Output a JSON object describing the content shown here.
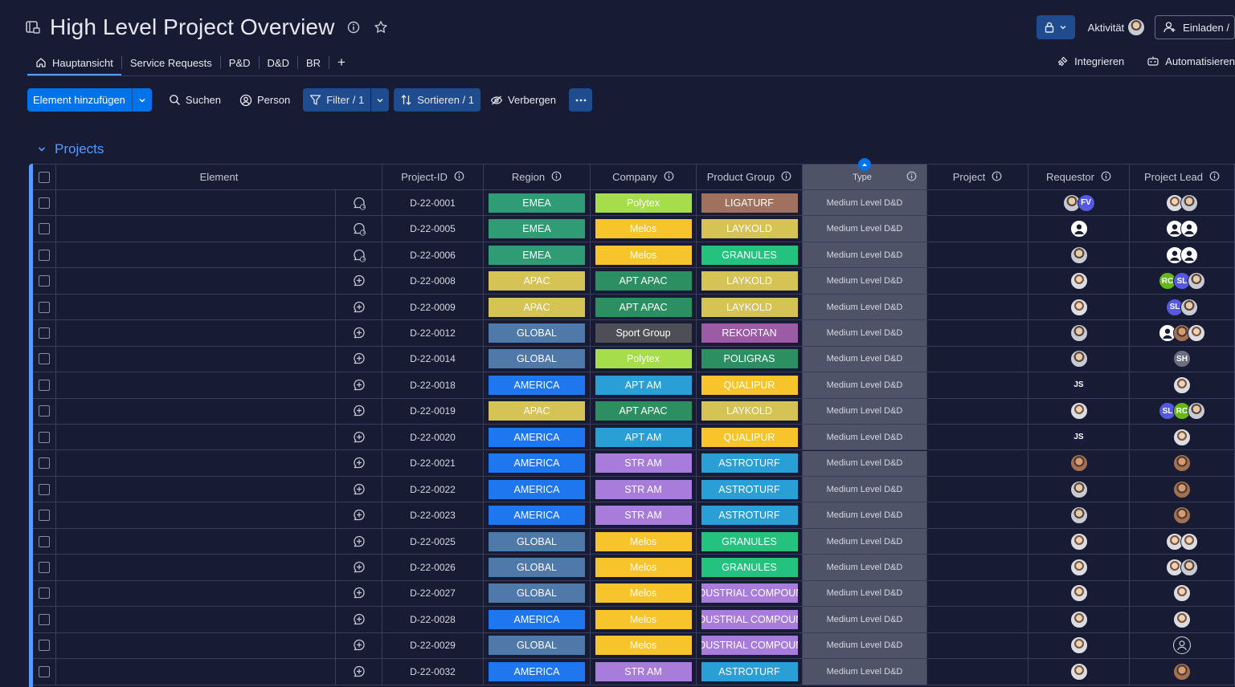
{
  "board": {
    "title": "High Level Project Overview",
    "activity_label": "Aktivität",
    "invite_label": "Einladen /"
  },
  "tabs": [
    {
      "label": "Hauptansicht"
    },
    {
      "label": "Service Requests"
    },
    {
      "label": "P&D"
    },
    {
      "label": "D&D"
    },
    {
      "label": "BR"
    }
  ],
  "tab_add": "+",
  "tabs_right": {
    "integrate": "Integrieren",
    "automate": "Automatisieren"
  },
  "toolbar": {
    "add_item": "Element hinzufügen",
    "search": "Suchen",
    "person": "Person",
    "filter": "Filter / 1",
    "sort": "Sortieren / 1",
    "hide": "Verbergen"
  },
  "group": {
    "title": "Projects"
  },
  "columns": {
    "element": "Element",
    "project_id": "Project-ID",
    "region": "Region",
    "company": "Company",
    "product_group": "Product Group",
    "type": "Type",
    "project": "Project",
    "requestor": "Requestor",
    "project_lead": "Project Lead"
  },
  "colors": {
    "EMEA": "#2f9c76",
    "APAC": "#d6c355",
    "GLOBAL": "#4e79a9",
    "AMERICA": "#1f77f0",
    "Polytex": "#a6dd4a",
    "Melos": "#f7c52b",
    "APT APAC": "#2b8f62",
    "Sport Group": "#4d4e56",
    "APT AM": "#2a9fd6",
    "STR AM": "#a87cdb",
    "LIGATURF": "#a0715e",
    "LAYKOLD": "#d6c355",
    "GRANULES": "#23c27e",
    "REKORTAN": "#9c5ba5",
    "POLIGRAS": "#2b8f62",
    "QUALIPUR": "#f7c52b",
    "ASTROTURF": "#2a9fd6",
    "INDUSTRIAL COMPOUND": "#a87cdb"
  },
  "rows": [
    {
      "id": "D-22-0001",
      "updates": "1",
      "region": "EMEA",
      "company": "Polytex",
      "pg": "LIGATURF",
      "type": "Medium Level D&D",
      "req": [
        {
          "k": "photo"
        },
        {
          "k": "init",
          "t": "FV",
          "c": "#5559df"
        }
      ],
      "lead": [
        {
          "k": "photo2"
        },
        {
          "k": "photo"
        }
      ]
    },
    {
      "id": "D-22-0005",
      "updates": "1",
      "region": "EMEA",
      "company": "Melos",
      "pg": "LAYKOLD",
      "type": "Medium Level D&D",
      "req": [
        {
          "k": "ghost"
        }
      ],
      "lead": [
        {
          "k": "ghost"
        },
        {
          "k": "ghost"
        }
      ]
    },
    {
      "id": "D-22-0006",
      "updates": "1",
      "region": "EMEA",
      "company": "Melos",
      "pg": "GRANULES",
      "type": "Medium Level D&D",
      "req": [
        {
          "k": "photo"
        }
      ],
      "lead": [
        {
          "k": "ghost"
        },
        {
          "k": "ghost"
        }
      ]
    },
    {
      "id": "D-22-0008",
      "updates": "",
      "region": "APAC",
      "company": "APT APAC",
      "pg": "LAYKOLD",
      "type": "Medium Level D&D",
      "req": [
        {
          "k": "photo2"
        }
      ],
      "lead": [
        {
          "k": "init",
          "t": "RC",
          "c": "#66b814"
        },
        {
          "k": "init",
          "t": "SL",
          "c": "#5559df"
        },
        {
          "k": "photo"
        }
      ]
    },
    {
      "id": "D-22-0009",
      "updates": "",
      "region": "APAC",
      "company": "APT APAC",
      "pg": "LAYKOLD",
      "type": "Medium Level D&D",
      "req": [
        {
          "k": "photo2"
        }
      ],
      "lead": [
        {
          "k": "init",
          "t": "SL",
          "c": "#5559df"
        },
        {
          "k": "photo"
        }
      ]
    },
    {
      "id": "D-22-0012",
      "updates": "",
      "region": "GLOBAL",
      "company": "Sport Group",
      "pg": "REKORTAN",
      "type": "Medium Level D&D",
      "req": [
        {
          "k": "photo"
        }
      ],
      "lead": [
        {
          "k": "ghost"
        },
        {
          "k": "photo3"
        },
        {
          "k": "photo2"
        }
      ]
    },
    {
      "id": "D-22-0014",
      "updates": "",
      "region": "GLOBAL",
      "company": "Polytex",
      "pg": "POLIGRAS",
      "type": "Medium Level D&D",
      "req": [
        {
          "k": "photo"
        }
      ],
      "lead": [
        {
          "k": "init",
          "t": "SH",
          "c": "#6b6e80"
        }
      ]
    },
    {
      "id": "D-22-0018",
      "updates": "",
      "region": "AMERICA",
      "company": "APT AM",
      "pg": "QUALIPUR",
      "type": "Medium Level D&D",
      "req": [
        {
          "k": "init",
          "t": "JS",
          "c": "#1a1d3a"
        }
      ],
      "lead": [
        {
          "k": "photo2"
        }
      ]
    },
    {
      "id": "D-22-0019",
      "updates": "",
      "region": "APAC",
      "company": "APT APAC",
      "pg": "LAYKOLD",
      "type": "Medium Level D&D",
      "req": [
        {
          "k": "photo2"
        }
      ],
      "lead": [
        {
          "k": "init",
          "t": "SL",
          "c": "#5559df"
        },
        {
          "k": "init",
          "t": "RC",
          "c": "#66b814"
        },
        {
          "k": "photo"
        }
      ]
    },
    {
      "id": "D-22-0020",
      "updates": "",
      "region": "AMERICA",
      "company": "APT AM",
      "pg": "QUALIPUR",
      "type": "Medium Level D&D",
      "req": [
        {
          "k": "init",
          "t": "JS",
          "c": "#1a1d3a"
        }
      ],
      "lead": [
        {
          "k": "photo2"
        }
      ]
    },
    {
      "id": "D-22-0021",
      "updates": "",
      "region": "AMERICA",
      "company": "STR AM",
      "pg": "ASTROTURF",
      "type": "Medium Level D&D",
      "req": [
        {
          "k": "photo3"
        }
      ],
      "lead": [
        {
          "k": "photo3"
        }
      ]
    },
    {
      "id": "D-22-0022",
      "updates": "",
      "region": "AMERICA",
      "company": "STR AM",
      "pg": "ASTROTURF",
      "type": "Medium Level D&D",
      "req": [
        {
          "k": "photo"
        }
      ],
      "lead": [
        {
          "k": "photo3"
        }
      ]
    },
    {
      "id": "D-22-0023",
      "updates": "",
      "region": "AMERICA",
      "company": "STR AM",
      "pg": "ASTROTURF",
      "type": "Medium Level D&D",
      "req": [
        {
          "k": "photo"
        }
      ],
      "lead": [
        {
          "k": "photo3"
        }
      ]
    },
    {
      "id": "D-22-0025",
      "updates": "",
      "region": "GLOBAL",
      "company": "Melos",
      "pg": "GRANULES",
      "type": "Medium Level D&D",
      "req": [
        {
          "k": "photo2"
        }
      ],
      "lead": [
        {
          "k": "photo2"
        },
        {
          "k": "photo2"
        }
      ]
    },
    {
      "id": "D-22-0026",
      "updates": "",
      "region": "GLOBAL",
      "company": "Melos",
      "pg": "GRANULES",
      "type": "Medium Level D&D",
      "req": [
        {
          "k": "photo2"
        }
      ],
      "lead": [
        {
          "k": "photo2"
        },
        {
          "k": "photo"
        }
      ]
    },
    {
      "id": "D-22-0027",
      "updates": "",
      "region": "GLOBAL",
      "company": "Melos",
      "pg": "INDUSTRIAL COMPOUND",
      "type": "Medium Level D&D",
      "req": [
        {
          "k": "photo2"
        }
      ],
      "lead": [
        {
          "k": "photo2"
        }
      ]
    },
    {
      "id": "D-22-0028",
      "updates": "",
      "region": "AMERICA",
      "company": "Melos",
      "pg": "INDUSTRIAL COMPOUND",
      "type": "Medium Level D&D",
      "req": [
        {
          "k": "photo2"
        }
      ],
      "lead": [
        {
          "k": "photo2"
        }
      ]
    },
    {
      "id": "D-22-0029",
      "updates": "",
      "region": "GLOBAL",
      "company": "Melos",
      "pg": "INDUSTRIAL COMPOUND",
      "type": "Medium Level D&D",
      "req": [
        {
          "k": "photo2"
        }
      ],
      "lead": [
        {
          "k": "outline"
        }
      ]
    },
    {
      "id": "D-22-0032",
      "updates": "",
      "region": "AMERICA",
      "company": "STR AM",
      "pg": "ASTROTURF",
      "type": "Medium Level D&D",
      "req": [
        {
          "k": "photo2"
        }
      ],
      "lead": [
        {
          "k": "photo3"
        }
      ]
    }
  ]
}
